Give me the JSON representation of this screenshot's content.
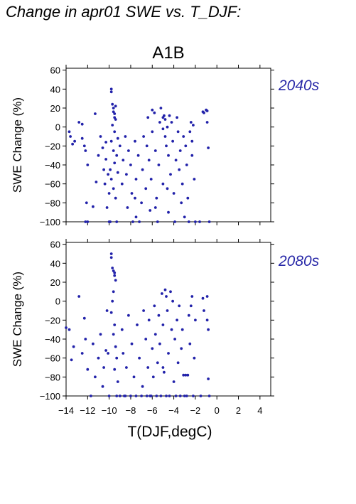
{
  "page": {
    "title": "Change in apr01 SWE vs. T_DJF:",
    "scenario": "A1B"
  },
  "colors": {
    "points": "#2222aa",
    "period_label": "#2828a8",
    "axes": "#000000"
  },
  "chart_data": [
    {
      "type": "scatter",
      "panel": "2040s",
      "ylabel": "SWE Change (%)",
      "xlim": [
        -14,
        5
      ],
      "ylim": [
        -100,
        62
      ],
      "xticks": [
        -14,
        -12,
        -10,
        -8,
        -6,
        -4,
        -2,
        0,
        2,
        4
      ],
      "yticks": [
        -100,
        -80,
        -60,
        -40,
        -20,
        0,
        20,
        40,
        60
      ],
      "grid": false,
      "series": [
        {
          "points": [
            [
              -13.7,
              -5
            ],
            [
              -13.6,
              -10
            ],
            [
              -13.4,
              -18
            ],
            [
              -13.2,
              -15
            ],
            [
              -12.8,
              5
            ],
            [
              -12.5,
              3
            ],
            [
              -12.5,
              -12
            ],
            [
              -12.3,
              -20
            ],
            [
              -12.2,
              -25
            ],
            [
              -12.0,
              -40
            ],
            [
              -12.1,
              -80
            ],
            [
              -12.2,
              -100
            ],
            [
              -12.0,
              -100
            ],
            [
              -11.5,
              -84
            ],
            [
              -11.2,
              -58
            ],
            [
              -11.3,
              14
            ],
            [
              -11.0,
              -30
            ],
            [
              -10.8,
              -10
            ],
            [
              -10.6,
              -22
            ],
            [
              -10.5,
              -45
            ],
            [
              -10.4,
              -60
            ],
            [
              -10.3,
              -16
            ],
            [
              -10.3,
              -34
            ],
            [
              -10.1,
              -50
            ],
            [
              -10.0,
              -70
            ],
            [
              -10.2,
              -85
            ],
            [
              -9.9,
              -100
            ],
            [
              -9.8,
              40
            ],
            [
              -9.8,
              37
            ],
            [
              -9.7,
              24
            ],
            [
              -9.6,
              20
            ],
            [
              -9.6,
              16
            ],
            [
              -9.5,
              14
            ],
            [
              -9.5,
              10
            ],
            [
              -9.4,
              22
            ],
            [
              -9.4,
              8
            ],
            [
              -9.7,
              2
            ],
            [
              -9.5,
              -5
            ],
            [
              -9.8,
              -15
            ],
            [
              -9.6,
              -25
            ],
            [
              -9.5,
              -38
            ],
            [
              -9.9,
              -45
            ],
            [
              -9.8,
              -55
            ],
            [
              -9.6,
              -65
            ],
            [
              -9.4,
              -75
            ],
            [
              -9.3,
              -30
            ],
            [
              -9.3,
              -100
            ],
            [
              -9.2,
              -12
            ],
            [
              -9.2,
              -48
            ],
            [
              -9.0,
              -20
            ],
            [
              -8.8,
              -60
            ],
            [
              -8.7,
              -35
            ],
            [
              -8.5,
              -10
            ],
            [
              -8.4,
              -50
            ],
            [
              -8.3,
              -85
            ],
            [
              -8.2,
              -25
            ],
            [
              -8.0,
              -40
            ],
            [
              -7.9,
              -70
            ],
            [
              -7.8,
              -100
            ],
            [
              -7.6,
              -15
            ],
            [
              -7.5,
              -55
            ],
            [
              -7.5,
              -95
            ],
            [
              -7.3,
              -30
            ],
            [
              -7.2,
              -100
            ],
            [
              -7.0,
              -80
            ],
            [
              -6.9,
              -45
            ],
            [
              -6.8,
              -10
            ],
            [
              -6.6,
              -65
            ],
            [
              -6.5,
              -20
            ],
            [
              -6.4,
              10
            ],
            [
              -6.3,
              -35
            ],
            [
              -6.2,
              -88
            ],
            [
              -6.1,
              -55
            ],
            [
              -6.0,
              -5
            ],
            [
              -5.8,
              15
            ],
            [
              -5.7,
              -25
            ],
            [
              -5.6,
              -75
            ],
            [
              -5.5,
              -100
            ],
            [
              -5.4,
              -40
            ],
            [
              -5.3,
              5
            ],
            [
              -5.2,
              20
            ],
            [
              -5.0,
              -60
            ],
            [
              -5.0,
              10
            ],
            [
              -4.9,
              12
            ],
            [
              -4.8,
              8
            ],
            [
              -4.8,
              -10
            ],
            [
              -4.7,
              -20
            ],
            [
              -4.6,
              0
            ],
            [
              -4.5,
              -30
            ],
            [
              -4.5,
              -90
            ],
            [
              -4.4,
              12
            ],
            [
              -4.3,
              -50
            ],
            [
              -4.2,
              5
            ],
            [
              -4.1,
              -15
            ],
            [
              -4.0,
              -70
            ],
            [
              -3.9,
              -100
            ],
            [
              -3.8,
              -35
            ],
            [
              -3.7,
              10
            ],
            [
              -3.6,
              -5
            ],
            [
              -3.5,
              -45
            ],
            [
              -3.4,
              -25
            ],
            [
              -3.3,
              -80
            ],
            [
              -3.2,
              -60
            ],
            [
              -3.1,
              -10
            ],
            [
              -3.0,
              -95
            ],
            [
              -2.9,
              -20
            ],
            [
              -2.8,
              -40
            ],
            [
              -2.7,
              -75
            ],
            [
              -2.6,
              -100
            ],
            [
              -2.5,
              -5
            ],
            [
              -2.4,
              5
            ],
            [
              -2.3,
              -15
            ],
            [
              -2.3,
              -30
            ],
            [
              -2.2,
              2
            ],
            [
              -2.1,
              -55
            ],
            [
              -2.0,
              -100
            ],
            [
              -1.6,
              -100
            ],
            [
              -1.3,
              16
            ],
            [
              -1.2,
              15
            ],
            [
              -1.0,
              18
            ],
            [
              -0.9,
              17
            ],
            [
              -0.9,
              5
            ],
            [
              -0.8,
              -22
            ],
            [
              -0.7,
              -100
            ],
            [
              -6.0,
              18
            ],
            [
              -5.0,
              -2
            ],
            [
              -4.6,
              -65
            ],
            [
              -5.7,
              -85
            ],
            [
              -7.6,
              -75
            ],
            [
              -10.0,
              -100
            ]
          ]
        }
      ]
    },
    {
      "type": "scatter",
      "panel": "2080s",
      "ylabel": "SWE Change (%)",
      "xlabel": "T(DJF,degC)",
      "xlim": [
        -14,
        5
      ],
      "ylim": [
        -100,
        62
      ],
      "xticks": [
        -14,
        -12,
        -10,
        -8,
        -6,
        -4,
        -2,
        0,
        2,
        4
      ],
      "xticklabels": [
        "−14",
        "−12",
        "−10",
        "−8",
        "−6",
        "−4",
        "−2",
        "0",
        "2",
        "4"
      ],
      "yticks": [
        -100,
        -80,
        -60,
        -40,
        -20,
        0,
        20,
        40,
        60
      ],
      "grid": false,
      "series": [
        {
          "points": [
            [
              -14.0,
              -28
            ],
            [
              -13.7,
              -30
            ],
            [
              -13.3,
              -48
            ],
            [
              -13.5,
              -62
            ],
            [
              -12.8,
              5
            ],
            [
              -12.3,
              -18
            ],
            [
              -12.5,
              -55
            ],
            [
              -12.2,
              -40
            ],
            [
              -12.0,
              -72
            ],
            [
              -11.7,
              -100
            ],
            [
              -11.5,
              -45
            ],
            [
              -11.3,
              -80
            ],
            [
              -11.0,
              -60
            ],
            [
              -10.8,
              -35
            ],
            [
              -10.6,
              -90
            ],
            [
              -10.5,
              -70
            ],
            [
              -10.3,
              -52
            ],
            [
              -10.2,
              -10
            ],
            [
              -10.1,
              -55
            ],
            [
              -10.0,
              -100
            ],
            [
              -9.8,
              50
            ],
            [
              -9.8,
              46
            ],
            [
              -9.7,
              35
            ],
            [
              -9.6,
              32
            ],
            [
              -9.5,
              30
            ],
            [
              -9.5,
              27
            ],
            [
              -9.4,
              22
            ],
            [
              -9.6,
              10
            ],
            [
              -9.7,
              0
            ],
            [
              -9.8,
              -12
            ],
            [
              -9.5,
              -25
            ],
            [
              -9.6,
              -35
            ],
            [
              -9.4,
              -48
            ],
            [
              -9.3,
              -60
            ],
            [
              -9.5,
              -72
            ],
            [
              -9.3,
              -100
            ],
            [
              -9.2,
              -85
            ],
            [
              -9.0,
              -100
            ],
            [
              -8.8,
              -30
            ],
            [
              -8.7,
              -55
            ],
            [
              -8.5,
              -100
            ],
            [
              -8.4,
              -70
            ],
            [
              -8.2,
              -15
            ],
            [
              -8.0,
              -100
            ],
            [
              -7.9,
              -45
            ],
            [
              -7.7,
              -80
            ],
            [
              -7.5,
              -100
            ],
            [
              -7.4,
              -25
            ],
            [
              -7.2,
              -60
            ],
            [
              -7.0,
              -100
            ],
            [
              -6.9,
              -90
            ],
            [
              -6.8,
              -10
            ],
            [
              -6.6,
              -40
            ],
            [
              -6.5,
              -100
            ],
            [
              -6.4,
              -70
            ],
            [
              -6.3,
              -20
            ],
            [
              -6.2,
              -100
            ],
            [
              -6.0,
              -50
            ],
            [
              -5.9,
              -80
            ],
            [
              -5.8,
              -5
            ],
            [
              -5.7,
              -35
            ],
            [
              -5.6,
              -100
            ],
            [
              -5.5,
              -65
            ],
            [
              -5.4,
              -15
            ],
            [
              -5.3,
              -45
            ],
            [
              -5.2,
              -100
            ],
            [
              -5.1,
              8
            ],
            [
              -5.0,
              -25
            ],
            [
              -4.9,
              -75
            ],
            [
              -4.8,
              12
            ],
            [
              -4.7,
              5
            ],
            [
              -4.6,
              -10
            ],
            [
              -4.5,
              -55
            ],
            [
              -4.4,
              -100
            ],
            [
              -4.3,
              10
            ],
            [
              -4.2,
              -30
            ],
            [
              -4.1,
              0
            ],
            [
              -4.0,
              -85
            ],
            [
              -3.9,
              -40
            ],
            [
              -3.8,
              -100
            ],
            [
              -3.7,
              -20
            ],
            [
              -3.6,
              -65
            ],
            [
              -3.5,
              -5
            ],
            [
              -3.4,
              -100
            ],
            [
              -3.3,
              -50
            ],
            [
              -3.2,
              -30
            ],
            [
              -3.1,
              -78
            ],
            [
              -3.0,
              -100
            ],
            [
              -2.9,
              -78
            ],
            [
              -2.8,
              -100
            ],
            [
              -2.7,
              -78
            ],
            [
              -2.6,
              -15
            ],
            [
              -2.5,
              -45
            ],
            [
              -2.4,
              -5
            ],
            [
              -2.3,
              5
            ],
            [
              -2.2,
              -100
            ],
            [
              -2.1,
              -60
            ],
            [
              -2.0,
              -20
            ],
            [
              -1.5,
              -100
            ],
            [
              -1.3,
              3
            ],
            [
              -1.2,
              -10
            ],
            [
              -0.9,
              5
            ],
            [
              -0.9,
              -20
            ],
            [
              -0.8,
              -30
            ],
            [
              -0.8,
              -82
            ],
            [
              -0.7,
              -100
            ],
            [
              -5.0,
              -70
            ],
            [
              -4.7,
              -100
            ],
            [
              -6.1,
              -100
            ],
            [
              -8.6,
              -100
            ]
          ]
        }
      ]
    }
  ]
}
